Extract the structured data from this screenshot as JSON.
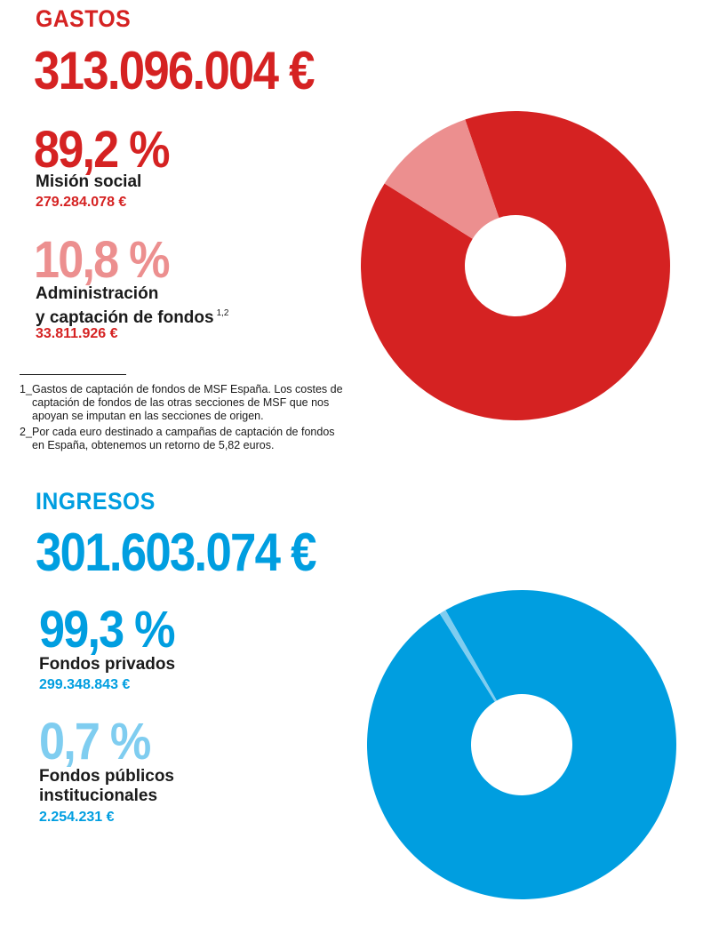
{
  "colors": {
    "red": "#d52222",
    "pink": "#ec8f8f",
    "blue": "#009ee0",
    "lightblue": "#7fcdf0"
  },
  "gastos": {
    "title": "GASTOS",
    "total": "313.096.004 €",
    "items": [
      {
        "pct": "89,2 %",
        "label": "Misión social",
        "amount": "279.284.078 €"
      },
      {
        "pct": "10,8 %",
        "label_line1": "Administración",
        "label_line2": "y captación de fondos",
        "sup": "1,2",
        "amount": "33.811.926 €"
      }
    ],
    "notes": [
      {
        "num": "1_",
        "text": "Gastos de captación de fondos de MSF España. Los costes de captación de fondos de las otras secciones de MSF que nos apoyan se imputan en las secciones de origen."
      },
      {
        "num": "2_",
        "text": "Por cada euro destinado a campañas de captación de fondos en España, obtenemos un retorno de 5,82 euros."
      }
    ]
  },
  "ingresos": {
    "title": "INGRESOS",
    "total": "301.603.074 €",
    "items": [
      {
        "pct": "99,3 %",
        "label": "Fondos privados",
        "amount": "299.348.843 €"
      },
      {
        "pct": "0,7 %",
        "label_line1": "Fondos públicos",
        "label_line2": "institucionales",
        "amount": "2.254.231 €"
      }
    ]
  },
  "chart_data": [
    {
      "type": "pie",
      "donut": true,
      "categories": [
        "Misión social",
        "Administración y captación de fondos"
      ],
      "values": [
        89.2,
        10.8
      ],
      "colors": [
        "#d52222",
        "#ec8f8f"
      ]
    },
    {
      "type": "pie",
      "donut": true,
      "categories": [
        "Fondos privados",
        "Fondos públicos institucionales"
      ],
      "values": [
        99.3,
        0.7
      ],
      "colors": [
        "#009ee0",
        "#7fcdf0"
      ]
    }
  ]
}
